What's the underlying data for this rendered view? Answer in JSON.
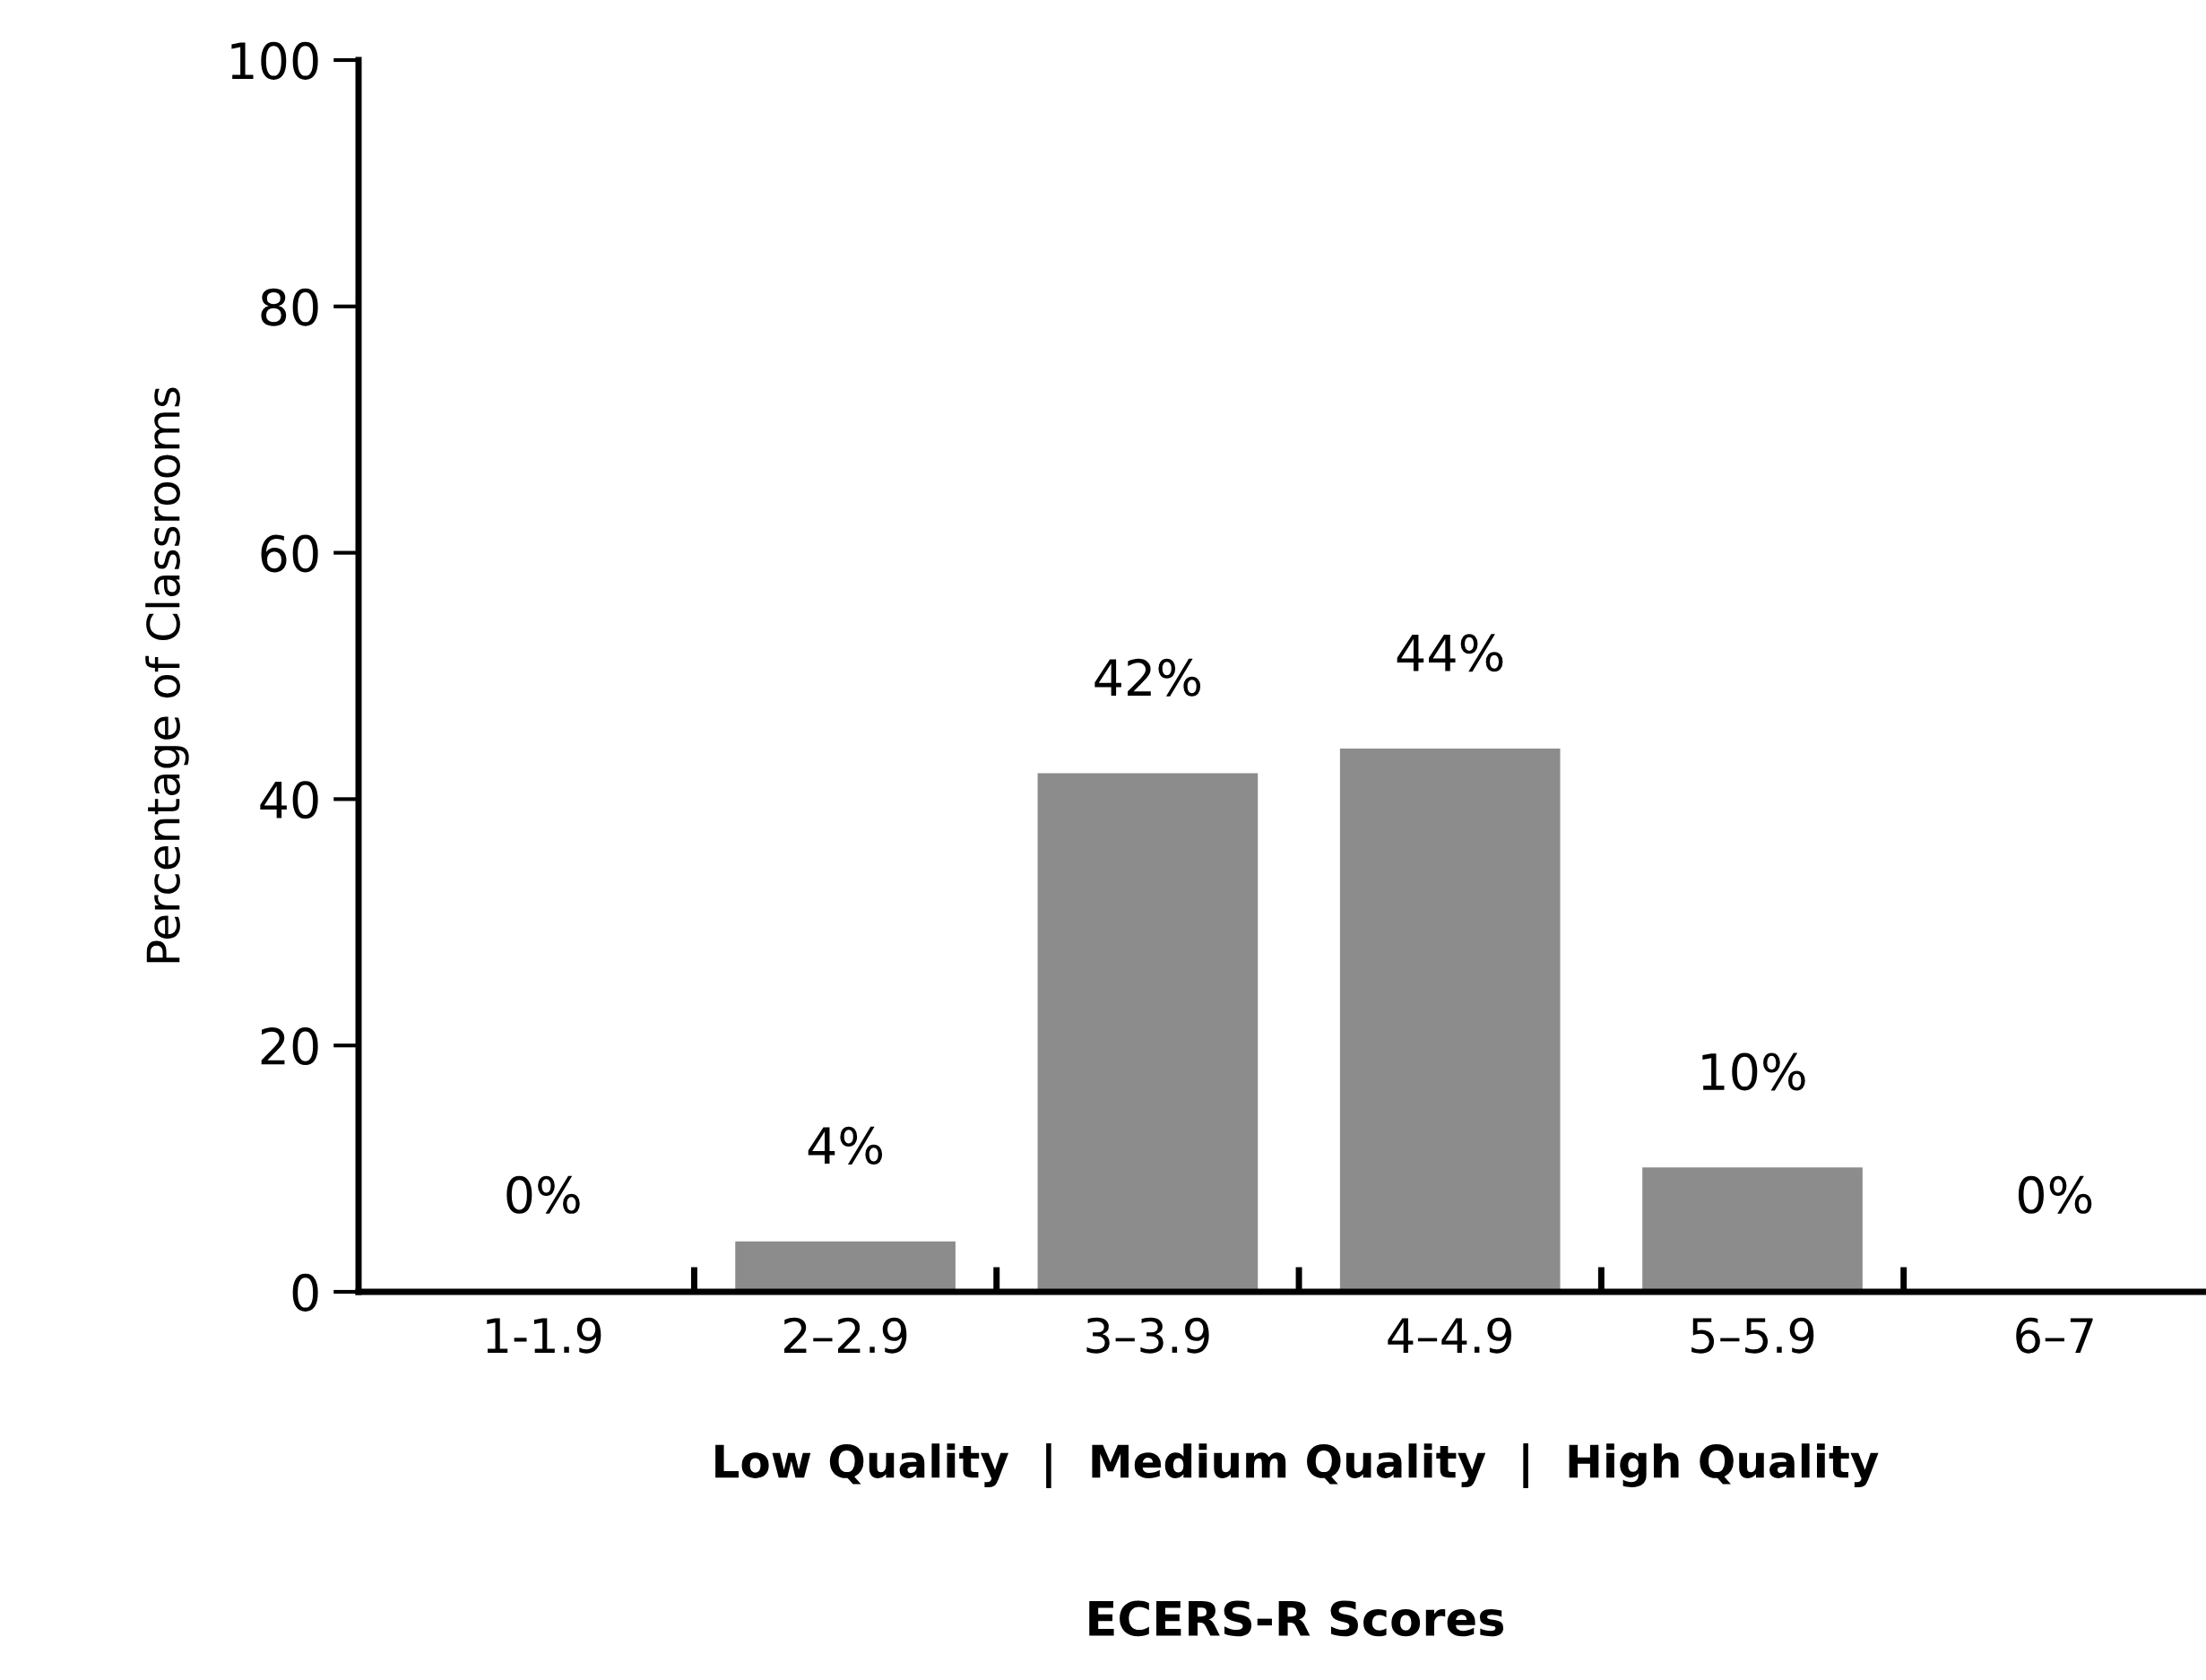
{
  "chart_data": {
    "type": "bar",
    "ylabel": "Percentage of Classrooms",
    "categories": [
      "1-1.9",
      "2–2.9",
      "3–3.9",
      "4–4.9",
      "5–5.9",
      "6–7"
    ],
    "values": [
      0,
      4,
      42,
      44,
      10,
      0
    ],
    "value_labels": [
      "0%",
      "4%",
      "42%",
      "44%",
      "10%",
      "0%"
    ],
    "color": "#8c8c8c",
    "ylim": [
      0,
      100
    ],
    "yticks": [
      0,
      20,
      40,
      60,
      80,
      100
    ],
    "grid": false,
    "legend": false,
    "annotations": [
      "Low Quality  |  Medium Quality  |  High Quality",
      "ECERS-R Scores"
    ]
  }
}
